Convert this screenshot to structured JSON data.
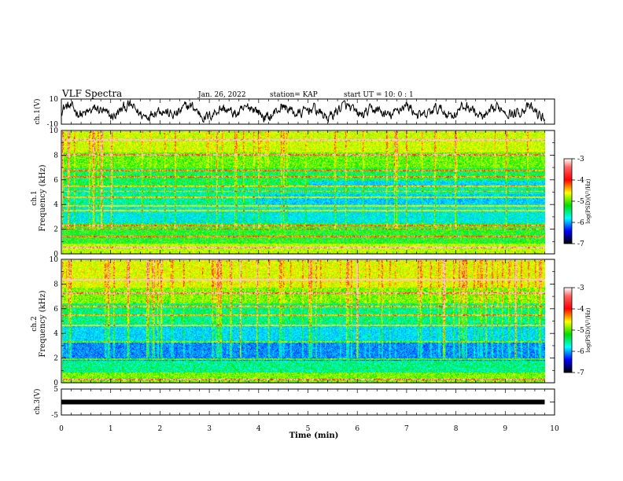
{
  "header": {
    "title": "VLF Spectra",
    "date": "Jan. 26, 2022",
    "station": "station= KAP",
    "start": "start  UT =   10: 0  : 1"
  },
  "chart_data": [
    {
      "type": "line",
      "name": "ch1-waveform",
      "ylabel": "ch.1(V)",
      "ylim": [
        -10,
        10
      ],
      "yticks": [
        "10",
        "-10"
      ],
      "xlim": [
        0,
        10
      ],
      "x_end": 9.8
    },
    {
      "type": "heatmap",
      "name": "ch1-spectrogram",
      "ylabel_top": "ch.1",
      "ylabel": "Frequency (kHz)",
      "ylim": [
        0,
        10
      ],
      "yticks": [
        "0",
        "2",
        "4",
        "6",
        "8",
        "10"
      ],
      "colorbar": {
        "label": "log(PSD)(V²/Hz)",
        "ticks": [
          "-3",
          "-4",
          "-5",
          "-6",
          "-7"
        ],
        "range": [
          -7,
          -3
        ]
      }
    },
    {
      "type": "heatmap",
      "name": "ch2-spectrogram",
      "ylabel_top": "ch.2",
      "ylabel": "Frequency (kHz)",
      "ylim": [
        0,
        10
      ],
      "yticks": [
        "0",
        "2",
        "4",
        "6",
        "8",
        "10"
      ],
      "colorbar": {
        "label": "log(PSD)(V²/Hz)",
        "ticks": [
          "-3",
          "-4",
          "-5",
          "-6",
          "-7"
        ],
        "range": [
          -7,
          -3
        ]
      }
    },
    {
      "type": "line",
      "name": "ch3-waveform",
      "ylabel": "ch.3(V)",
      "ylim": [
        -5,
        5
      ],
      "yticks": [
        "5",
        "0",
        "-5"
      ],
      "value": 0,
      "xlim": [
        0,
        10
      ]
    }
  ],
  "xaxis": {
    "label": "Time (min)",
    "ticks": [
      "0",
      "1",
      "2",
      "3",
      "4",
      "5",
      "6",
      "7",
      "8",
      "9",
      "10"
    ]
  }
}
